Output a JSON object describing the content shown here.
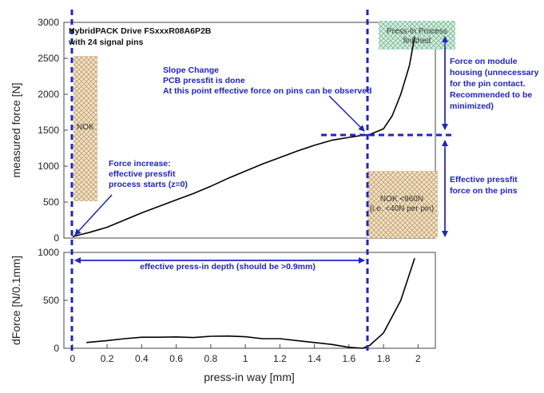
{
  "chart_data": [
    {
      "type": "line",
      "title": "HybridPACK Drive FSxxxR08A6P2B with 24 signal pins",
      "ylabel": "measured force [N]",
      "xlim": [
        -0.05,
        2.1
      ],
      "ylim": [
        0,
        3000
      ],
      "yticks": [
        "0",
        "500",
        "1000",
        "1500",
        "2000",
        "2500",
        "3000"
      ],
      "grid": false,
      "series": [
        {
          "x": [
            0,
            0.05,
            0.1,
            0.2,
            0.3,
            0.4,
            0.5,
            0.6,
            0.7,
            0.8,
            0.9,
            1.0,
            1.1,
            1.2,
            1.3,
            1.4,
            1.5,
            1.6,
            1.68,
            1.72,
            1.8,
            1.85,
            1.9,
            1.95,
            1.98
          ],
          "y": [
            20,
            50,
            80,
            150,
            250,
            350,
            440,
            530,
            620,
            720,
            830,
            930,
            1030,
            1120,
            1210,
            1290,
            1360,
            1400,
            1430,
            1440,
            1520,
            1700,
            2000,
            2400,
            2800
          ]
        }
      ],
      "annotations": {
        "title_line1": "HybridPACK Drive FSxxxR08A6P2B",
        "title_line2": "with 24 signal pins",
        "slope_line1": "Slope Change",
        "slope_line2": "PCB pressfit is done",
        "slope_line3": "At this point effective force on pins can be observed",
        "force_inc_line1": "Force increase:",
        "force_inc_line2": "effective pressfit",
        "force_inc_line3": "process starts (z=0)",
        "housing_line1": "Force on module",
        "housing_line2": "housing (unnecessary",
        "housing_line3": "for the pin contact.",
        "housing_line4": "Recommended to be",
        "housing_line5": "minimized)",
        "eff_line1": "Effective pressfit",
        "eff_line2": "force on the pins",
        "nok_left": "NOK",
        "nok_right_line1": "NOK <960N",
        "nok_right_line2": "(i.e. <40N per pin)",
        "pressin_line1": "Press-In Process",
        "pressin_line2": "finished"
      }
    },
    {
      "type": "line",
      "ylabel": "dForce [N/0.1mm]",
      "xlabel": "press-in way [mm]",
      "xlim": [
        -0.05,
        2.1
      ],
      "ylim": [
        0,
        1000
      ],
      "xticks": [
        "0",
        "0.2",
        "0.4",
        "0.6",
        "0.8",
        "1",
        "1.2",
        "1.4",
        "1.6",
        "1.8",
        "2"
      ],
      "yticks": [
        "0",
        "500",
        "1000"
      ],
      "grid": false,
      "series": [
        {
          "x": [
            0.08,
            0.2,
            0.3,
            0.4,
            0.5,
            0.6,
            0.7,
            0.8,
            0.9,
            1.0,
            1.1,
            1.2,
            1.3,
            1.4,
            1.5,
            1.6,
            1.68,
            1.72,
            1.8,
            1.9,
            1.98
          ],
          "y": [
            60,
            80,
            100,
            115,
            115,
            118,
            112,
            125,
            128,
            120,
            100,
            100,
            80,
            60,
            40,
            10,
            0,
            30,
            160,
            500,
            940
          ]
        }
      ],
      "annotations": {
        "depth_text": "effective press-in depth (should be >0.9mm)"
      }
    }
  ]
}
